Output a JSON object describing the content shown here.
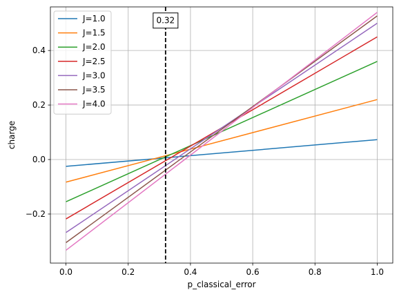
{
  "chart_data": {
    "type": "line",
    "title": "",
    "xlabel": "p_classical_error",
    "ylabel": "charge",
    "xlim": [
      -0.05,
      1.05
    ],
    "ylim": [
      -0.38,
      0.56
    ],
    "xticks": [
      0.0,
      0.2,
      0.4,
      0.6,
      0.8,
      1.0
    ],
    "xtick_labels": [
      "0.0",
      "0.2",
      "0.4",
      "0.6",
      "0.8",
      "1.0"
    ],
    "yticks": [
      -0.2,
      0.0,
      0.2,
      0.4
    ],
    "ytick_labels": [
      "−0.2",
      "0.0",
      "0.2",
      "0.4"
    ],
    "grid": true,
    "legend_position": "top-left",
    "x": [
      0.0,
      1.0
    ],
    "series": [
      {
        "name": "J=1.0",
        "color": "#1f77b4",
        "values": [
          -0.025,
          0.073
        ]
      },
      {
        "name": "J=1.5",
        "color": "#ff7f0e",
        "values": [
          -0.083,
          0.22
        ]
      },
      {
        "name": "J=2.0",
        "color": "#2ca02c",
        "values": [
          -0.155,
          0.36
        ]
      },
      {
        "name": "J=2.5",
        "color": "#d62728",
        "values": [
          -0.218,
          0.45
        ]
      },
      {
        "name": "J=3.0",
        "color": "#9467bd",
        "values": [
          -0.268,
          0.5
        ]
      },
      {
        "name": "J=3.5",
        "color": "#8c564b",
        "values": [
          -0.305,
          0.527
        ]
      },
      {
        "name": "J=4.0",
        "color": "#e377c2",
        "values": [
          -0.333,
          0.54
        ]
      }
    ],
    "vline": {
      "x": 0.32,
      "style": "dashed",
      "color": "#000000"
    },
    "annotation": {
      "text": "0.32",
      "x": 0.32,
      "y": 0.51
    }
  }
}
